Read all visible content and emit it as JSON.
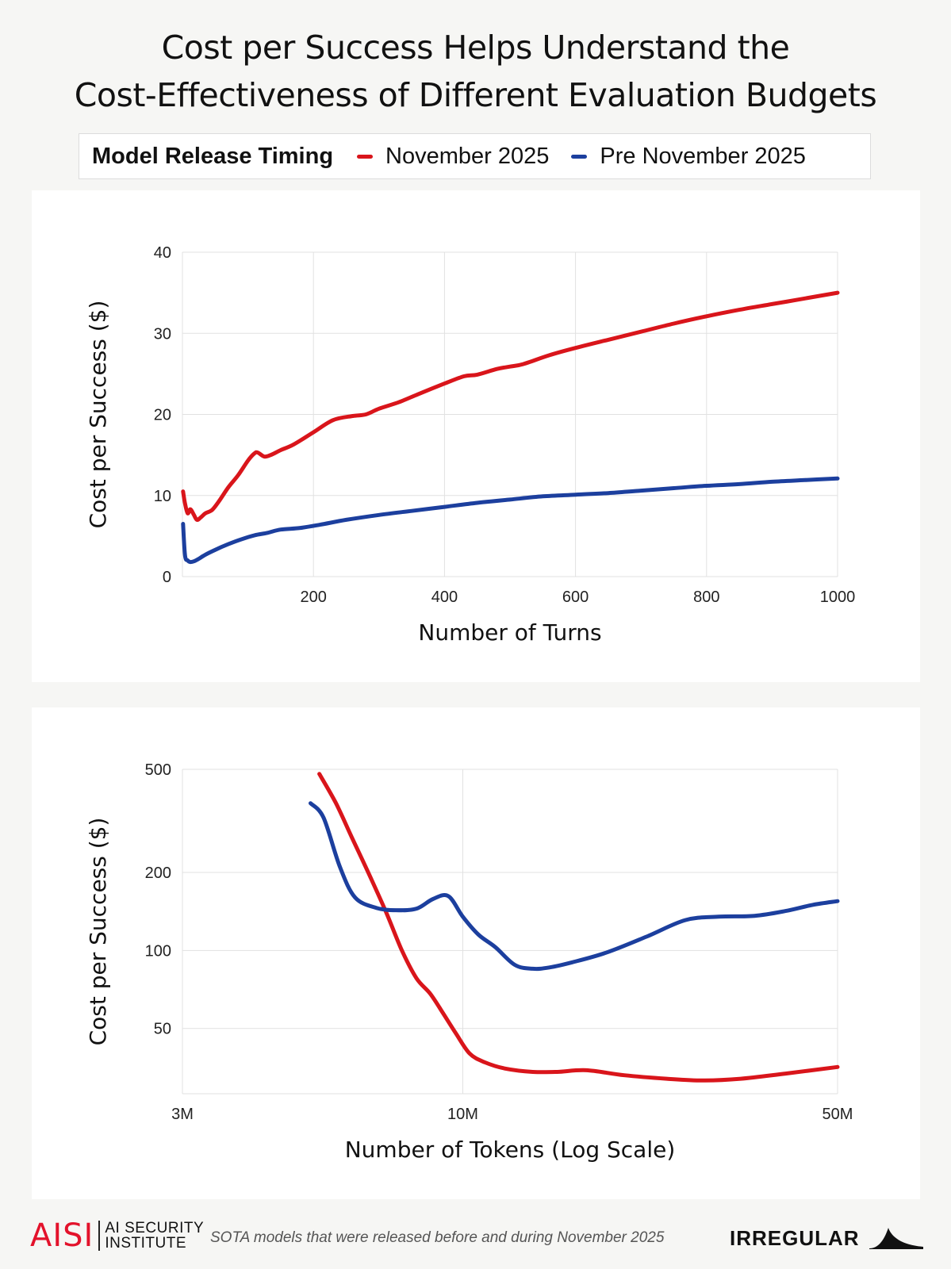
{
  "title": {
    "line1": "Cost per Success Helps Understand the",
    "line2": "Cost-Effectiveness of Different Evaluation Budgets"
  },
  "legend": {
    "title": "Model Release Timing",
    "items": [
      {
        "label": "November 2025",
        "color": "#d9151b"
      },
      {
        "label": "Pre November 2025",
        "color": "#1c3f9e"
      }
    ]
  },
  "chart_data": [
    {
      "type": "line",
      "title": "",
      "xlabel": "Number of Turns",
      "ylabel": "Cost per Success ($)",
      "xlim": [
        0,
        1000
      ],
      "ylim": [
        0,
        40
      ],
      "x_ticks": [
        200,
        400,
        600,
        800,
        1000
      ],
      "y_ticks": [
        0,
        10,
        20,
        30,
        40
      ],
      "grid": true,
      "series": [
        {
          "name": "November 2025",
          "color": "#d9151b",
          "x": [
            1,
            4,
            8,
            12,
            17,
            22,
            28,
            35,
            45,
            55,
            70,
            85,
            100,
            110,
            115,
            125,
            135,
            150,
            170,
            200,
            230,
            260,
            280,
            300,
            330,
            360,
            400,
            430,
            450,
            480,
            500,
            520,
            560,
            600,
            650,
            700,
            750,
            800,
            850,
            900,
            950,
            1000
          ],
          "y": [
            10.5,
            9.0,
            7.8,
            8.3,
            7.7,
            7.0,
            7.3,
            7.8,
            8.2,
            9.2,
            11.0,
            12.5,
            14.3,
            15.2,
            15.3,
            14.8,
            15.0,
            15.6,
            16.3,
            17.8,
            19.3,
            19.8,
            20.0,
            20.7,
            21.5,
            22.5,
            23.8,
            24.7,
            24.9,
            25.6,
            25.9,
            26.2,
            27.3,
            28.2,
            29.2,
            30.2,
            31.2,
            32.1,
            32.9,
            33.6,
            34.3,
            35.0
          ]
        },
        {
          "name": "Pre November 2025",
          "color": "#1c3f9e",
          "x": [
            1,
            4,
            8,
            12,
            18,
            25,
            35,
            50,
            70,
            90,
            110,
            130,
            150,
            180,
            210,
            250,
            300,
            350,
            400,
            450,
            500,
            550,
            600,
            650,
            700,
            750,
            800,
            850,
            900,
            950,
            1000
          ],
          "y": [
            6.5,
            2.6,
            2.0,
            1.8,
            1.9,
            2.2,
            2.7,
            3.3,
            4.0,
            4.6,
            5.1,
            5.4,
            5.8,
            6.0,
            6.4,
            7.0,
            7.6,
            8.1,
            8.6,
            9.1,
            9.5,
            9.9,
            10.1,
            10.3,
            10.6,
            10.9,
            11.2,
            11.4,
            11.7,
            11.9,
            12.1
          ]
        }
      ]
    },
    {
      "type": "line",
      "title": "",
      "xlabel": "Number of Tokens (Log Scale)",
      "ylabel": "Cost per Success ($)",
      "xscale": "log",
      "yscale": "log",
      "xlim": [
        3000000,
        50000000
      ],
      "ylim": [
        28,
        500
      ],
      "x_ticks": [
        3000000,
        10000000,
        50000000
      ],
      "x_tick_labels": [
        "3M",
        "10M",
        "50M"
      ],
      "y_ticks": [
        50,
        100,
        200,
        500
      ],
      "grid": true,
      "series": [
        {
          "name": "November 2025",
          "color": "#d9151b",
          "x": [
            5400000,
            5800000,
            6200000,
            6700000,
            7200000,
            7700000,
            8200000,
            8700000,
            9200000,
            9700000,
            10300000,
            11000000,
            12000000,
            13500000,
            15000000,
            17000000,
            20000000,
            24000000,
            28000000,
            33000000,
            40000000,
            50000000
          ],
          "y": [
            480,
            370,
            275,
            195,
            140,
            100,
            78,
            68,
            57,
            48,
            40,
            37,
            35,
            34,
            34,
            34.5,
            33,
            32,
            31.5,
            32,
            33.5,
            35.5
          ]
        },
        {
          "name": "Pre November 2025",
          "color": "#1c3f9e",
          "x": [
            5200000,
            5500000,
            5900000,
            6300000,
            6900000,
            7500000,
            8200000,
            8800000,
            9400000,
            10000000,
            10700000,
            11500000,
            12500000,
            13500000,
            14500000,
            16000000,
            18500000,
            22000000,
            26000000,
            30000000,
            35000000,
            40000000,
            45000000,
            50000000
          ],
          "y": [
            370,
            325,
            210,
            160,
            146,
            143,
            145,
            158,
            162,
            135,
            115,
            103,
            88,
            85,
            86,
            90,
            98,
            113,
            131,
            135,
            136,
            142,
            150,
            155
          ]
        }
      ]
    }
  ],
  "footer": {
    "org_mark": "AISI",
    "org_line1": "AI SECURITY",
    "org_line2": "INSTITUTE",
    "note": "SOTA models that were released before and during November 2025",
    "partner": "IRREGULAR"
  }
}
